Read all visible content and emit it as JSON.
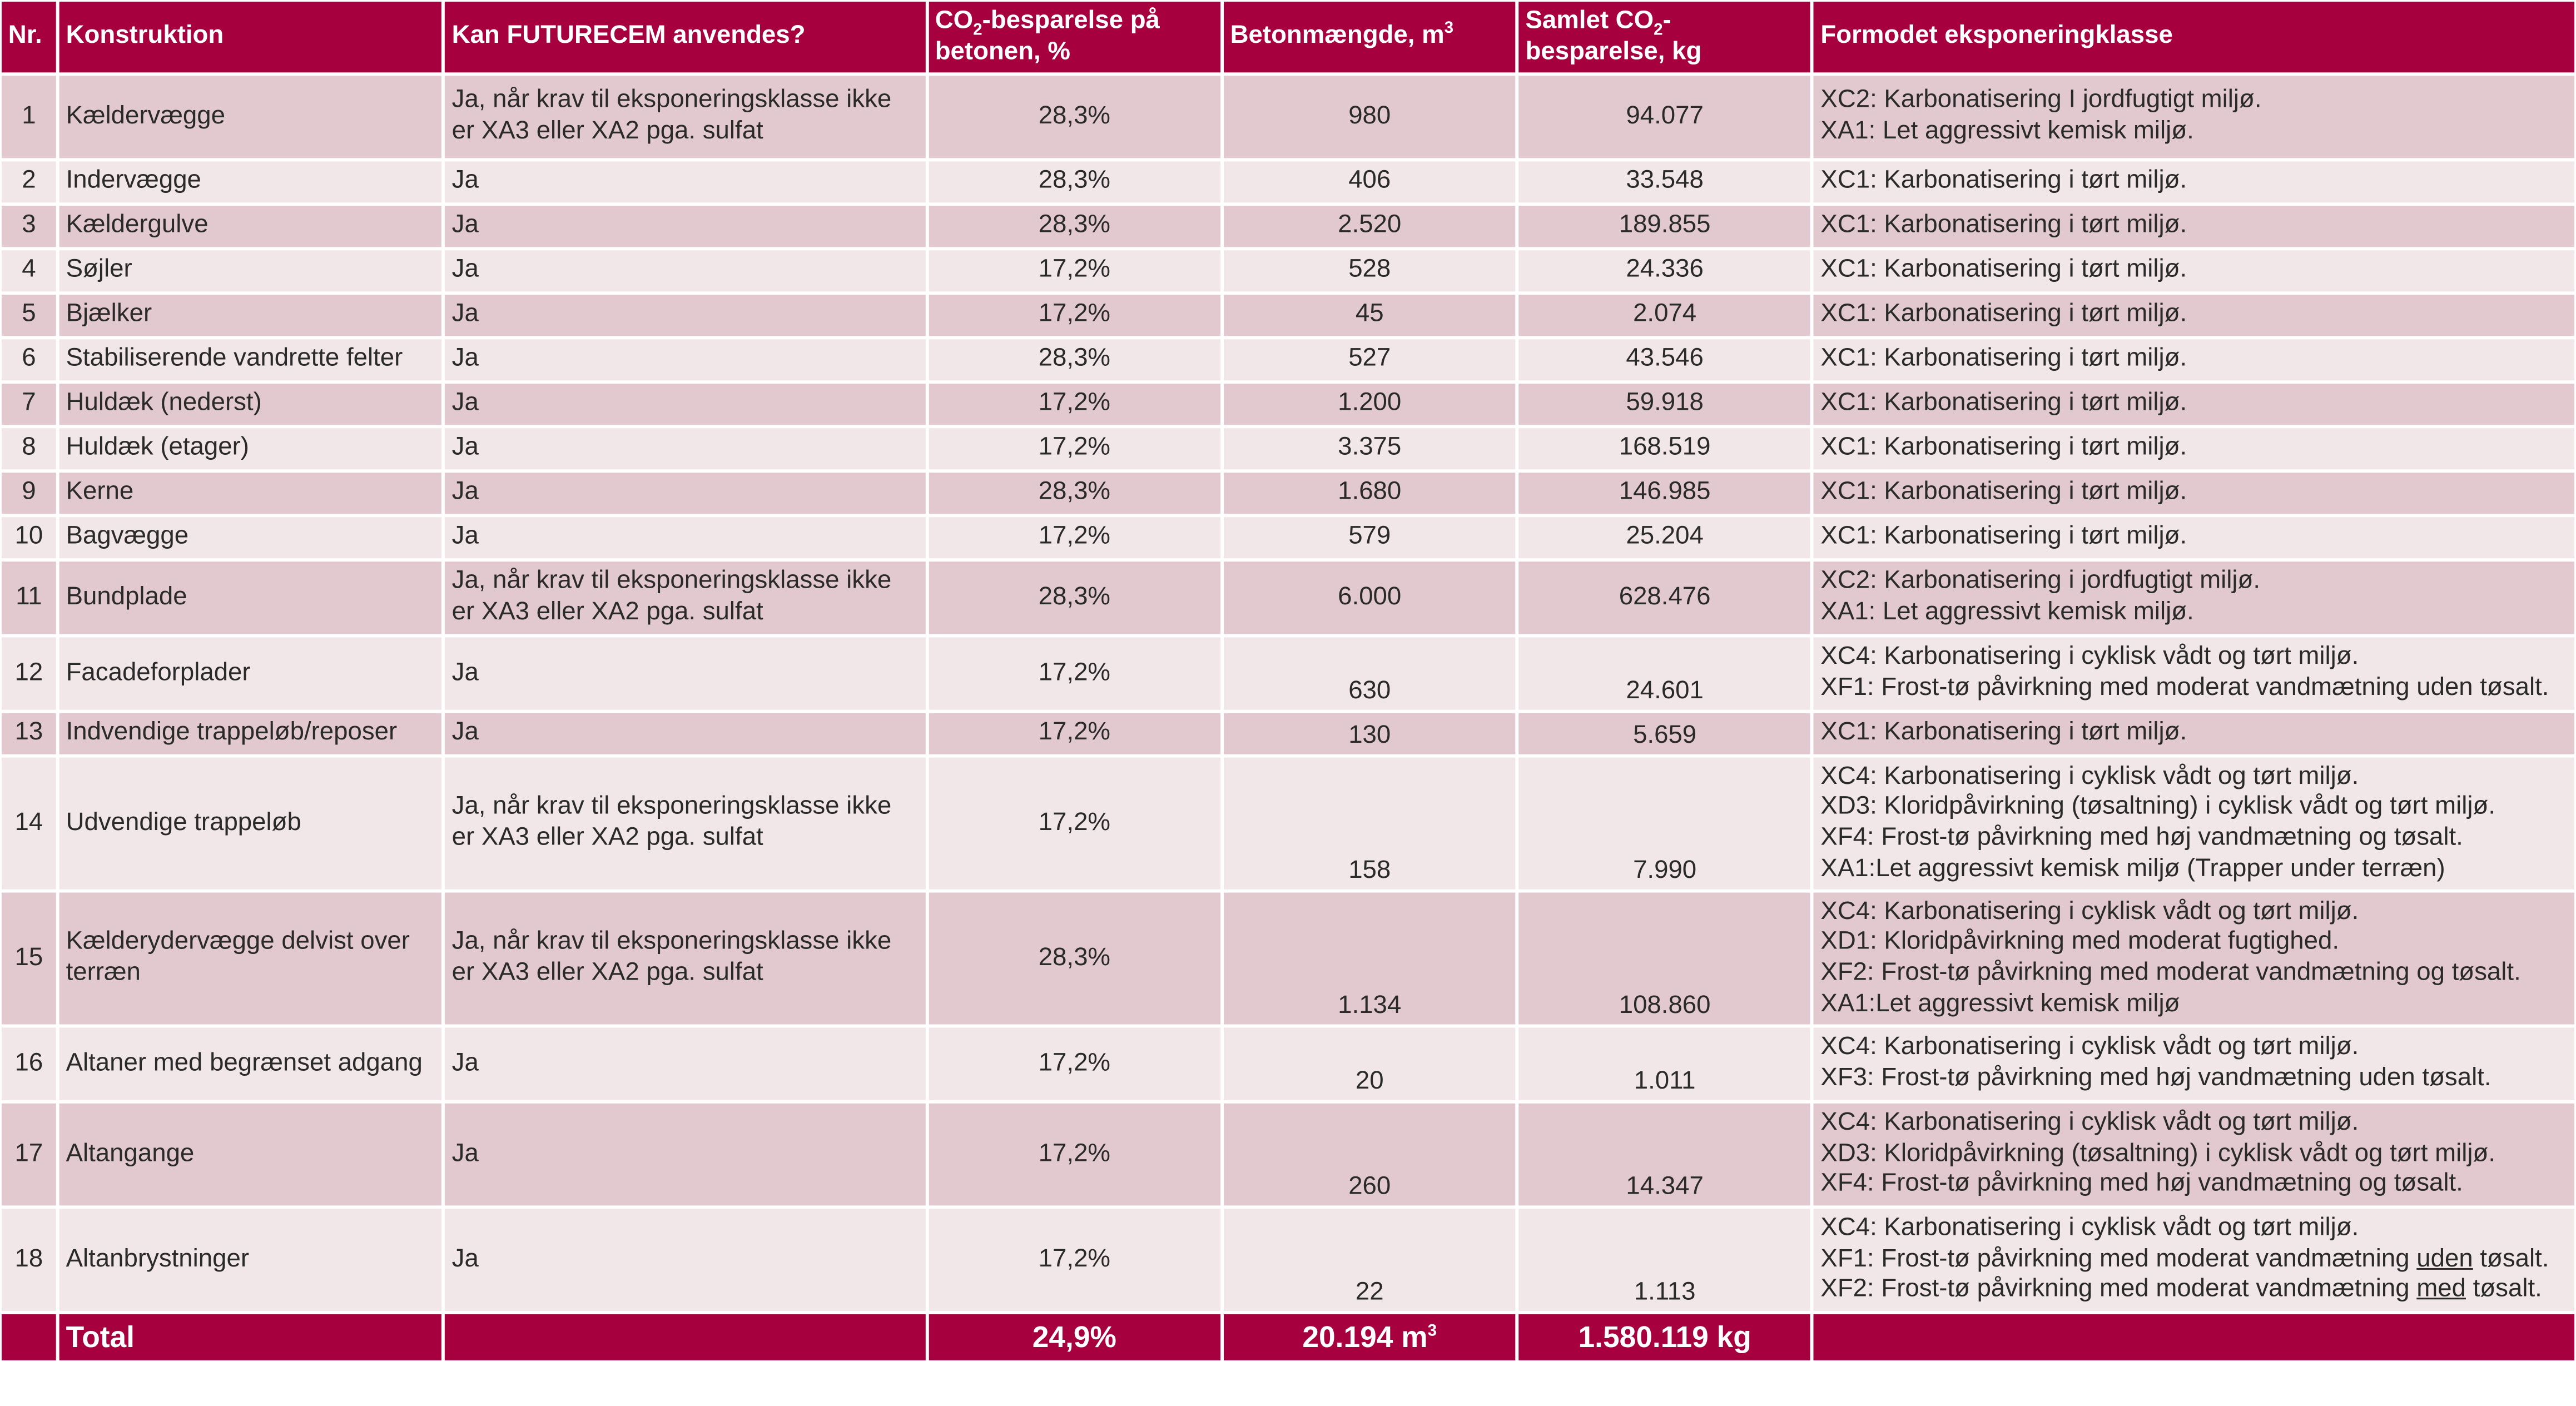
{
  "header": {
    "nr": "Nr.",
    "konstruktion": "Konstruktion",
    "kan": "Kan FUTURECEM anvendes?",
    "co2_a": "CO",
    "co2_sub": "2",
    "co2_b": "-besparelse på betonen, %",
    "beton": "Betonmængde, m",
    "beton_sup": "3",
    "samlet_a": "Samlet CO",
    "samlet_sub": "2",
    "samlet_b": "-besparelse, kg",
    "klasse": "Formodet eksponeringklasse"
  },
  "rows": [
    {
      "nr": "1",
      "konstruktion": "Kældervægge",
      "kan": "Ja, når krav til eksponeringsklasse ikke er XA3 eller XA2 pga. sulfat",
      "pct": "28,3%",
      "beton": "980",
      "samlet": "94.077",
      "klasse": [
        "XC2: Karbonatisering I jordfugtigt miljø.",
        "XA1: Let aggressivt kemisk miljø."
      ]
    },
    {
      "nr": "2",
      "konstruktion": "Indervægge",
      "kan": "Ja",
      "pct": "28,3%",
      "beton": "406",
      "samlet": "33.548",
      "klasse": [
        "XC1: Karbonatisering i tørt miljø."
      ]
    },
    {
      "nr": "3",
      "konstruktion": "Kældergulve",
      "kan": "Ja",
      "pct": "28,3%",
      "beton": "2.520",
      "samlet": "189.855",
      "klasse": [
        "XC1: Karbonatisering i tørt miljø."
      ]
    },
    {
      "nr": "4",
      "konstruktion": "Søjler",
      "kan": "Ja",
      "pct": "17,2%",
      "beton": "528",
      "samlet": "24.336",
      "klasse": [
        "XC1: Karbonatisering i tørt miljø."
      ]
    },
    {
      "nr": "5",
      "konstruktion": "Bjælker",
      "kan": "Ja",
      "pct": "17,2%",
      "beton": "45",
      "samlet": "2.074",
      "klasse": [
        "XC1: Karbonatisering i tørt miljø."
      ]
    },
    {
      "nr": "6",
      "konstruktion": "Stabiliserende vandrette felter",
      "kan": "Ja",
      "pct": "28,3%",
      "beton": "527",
      "samlet": "43.546",
      "klasse": [
        "XC1: Karbonatisering i tørt miljø."
      ]
    },
    {
      "nr": "7",
      "konstruktion": "Huldæk (nederst)",
      "kan": "Ja",
      "pct": "17,2%",
      "beton": "1.200",
      "samlet": "59.918",
      "klasse": [
        "XC1: Karbonatisering i tørt miljø."
      ]
    },
    {
      "nr": "8",
      "konstruktion": "Huldæk (etager)",
      "kan": "Ja",
      "pct": "17,2%",
      "beton": "3.375",
      "samlet": "168.519",
      "klasse": [
        "XC1: Karbonatisering i tørt miljø."
      ]
    },
    {
      "nr": "9",
      "konstruktion": "Kerne",
      "kan": "Ja",
      "pct": "28,3%",
      "beton": "1.680",
      "samlet": "146.985",
      "klasse": [
        "XC1: Karbonatisering i tørt miljø."
      ]
    },
    {
      "nr": "10",
      "konstruktion": "Bagvægge",
      "kan": "Ja",
      "pct": "17,2%",
      "beton": "579",
      "samlet": "25.204",
      "klasse": [
        "XC1: Karbonatisering i tørt miljø."
      ]
    },
    {
      "nr": "11",
      "konstruktion": "Bundplade",
      "kan": "Ja, når krav til eksponeringsklasse ikke er XA3 eller XA2 pga. sulfat",
      "pct": "28,3%",
      "beton": "6.000",
      "samlet": "628.476",
      "klasse": [
        "XC2: Karbonatisering i jordfugtigt miljø.",
        "XA1: Let aggressivt kemisk miljø."
      ]
    },
    {
      "nr": "12",
      "konstruktion": "Facadeforplader",
      "kan": "Ja",
      "pct": "17,2%",
      "beton": "630",
      "samlet": "24.601",
      "klasse": [
        "XC4: Karbonatisering i cyklisk vådt og tørt miljø.",
        "XF1: Frost-tø påvirkning med moderat vandmætning uden tøsalt."
      ]
    },
    {
      "nr": "13",
      "konstruktion": "Indvendige trappeløb/reposer",
      "kan": "Ja",
      "pct": "17,2%",
      "beton": "130",
      "samlet": "5.659",
      "klasse": [
        "XC1: Karbonatisering i tørt miljø."
      ]
    },
    {
      "nr": "14",
      "konstruktion": "Udvendige trappeløb",
      "kan": "Ja, når krav til eksponeringsklasse ikke er XA3 eller XA2 pga. sulfat",
      "pct": "17,2%",
      "beton": "158",
      "samlet": "7.990",
      "klasse": [
        "XC4: Karbonatisering i cyklisk vådt og tørt miljø.",
        "XD3: Kloridpåvirkning (tøsaltning) i cyklisk vådt og tørt miljø.",
        "XF4: Frost-tø påvirkning med høj vandmætning og tøsalt.",
        "XA1:Let aggressivt kemisk miljø (Trapper under terræn)"
      ]
    },
    {
      "nr": "15",
      "konstruktion": "Kælderydervægge delvist over terræn",
      "kan": "Ja, når krav til eksponeringsklasse ikke er XA3 eller XA2 pga. sulfat",
      "pct": "28,3%",
      "beton": "1.134",
      "samlet": "108.860",
      "klasse": [
        "XC4: Karbonatisering i cyklisk vådt og tørt miljø.",
        "XD1: Kloridpåvirkning med moderat fugtighed.",
        "XF2: Frost-tø påvirkning med moderat vandmætning og tøsalt.",
        "XA1:Let aggressivt kemisk miljø"
      ]
    },
    {
      "nr": "16",
      "konstruktion": "Altaner med begrænset adgang",
      "kan": "Ja",
      "pct": "17,2%",
      "beton": "20",
      "samlet": "1.011",
      "klasse": [
        "XC4: Karbonatisering i cyklisk vådt og tørt miljø.",
        "XF3: Frost-tø påvirkning med høj vandmætning uden tøsalt."
      ]
    },
    {
      "nr": "17",
      "konstruktion": "Altangange",
      "kan": "Ja",
      "pct": "17,2%",
      "beton": "260",
      "samlet": "14.347",
      "klasse": [
        "XC4: Karbonatisering i cyklisk vådt og tørt miljø.",
        "XD3: Kloridpåvirkning (tøsaltning) i cyklisk vådt og tørt miljø.",
        "XF4: Frost-tø påvirkning med høj vandmætning og tøsalt."
      ]
    },
    {
      "nr": "18",
      "konstruktion": "Altanbrystninger",
      "kan": "Ja",
      "pct": "17,2%",
      "beton": "22",
      "samlet": "1.113",
      "klasse": [
        "XC4: Karbonatisering i cyklisk vådt og tørt miljø."
      ]
    }
  ],
  "row18_extra": {
    "xf1_pre": "XF1: Frost-tø påvirkning med moderat vandmætning ",
    "xf1_ul": "uden",
    "xf1_post": " tøsalt.",
    "xf2_pre": "XF2: Frost-tø påvirkning med moderat vandmætning ",
    "xf2_ul": "med",
    "xf2_post": " tøsalt."
  },
  "total": {
    "label": "Total",
    "pct": "24,9%",
    "beton": "20.194 m",
    "beton_sup": "3",
    "samlet": "1.580.119 kg"
  }
}
